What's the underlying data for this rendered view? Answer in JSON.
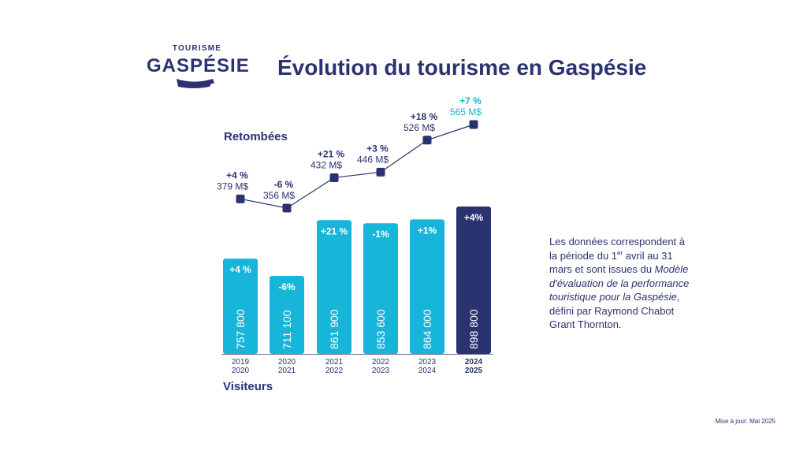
{
  "logo": {
    "small": "TOURISME",
    "big": "GASPÉSIE"
  },
  "title": "Évolution du tourisme en Gaspésie",
  "labels": {
    "retombees": "Retombées",
    "visiteurs": "Visiteurs"
  },
  "note": {
    "part1": "Les données correspondent à la période du 1",
    "sup": "er",
    "part2": " avril au 31 mars et sont issues du ",
    "italic": "Modèle d'évaluation de la performance touristique pour la Gaspésie",
    "part3": ", défini par Raymond Chabot Grant Thornton."
  },
  "updated": "Mise à jour: Mai 2025",
  "colors": {
    "navy": "#2b3270",
    "cyan": "#16b5d9",
    "highlight_text": "#16b5d9"
  },
  "chart_data": [
    {
      "type": "bar",
      "title": "Visiteurs",
      "categories": [
        [
          "2019",
          "2020"
        ],
        [
          "2020",
          "2021"
        ],
        [
          "2021",
          "2022"
        ],
        [
          "2022",
          "2023"
        ],
        [
          "2023",
          "2024"
        ],
        [
          "2024",
          "2025"
        ]
      ],
      "values": [
        757800,
        711100,
        861900,
        853600,
        864000,
        898800
      ],
      "value_labels": [
        "757 800",
        "711 100",
        "861 900",
        "853 600",
        "864 000",
        "898 800"
      ],
      "change_labels": [
        "+4 %",
        "-6%",
        "+21 %",
        "-1%",
        "+1%",
        "+4%"
      ],
      "highlight_index": 5
    },
    {
      "type": "line",
      "title": "Retombées",
      "categories": [
        "2019-2020",
        "2020-2021",
        "2021-2022",
        "2022-2023",
        "2023-2024",
        "2024-2025"
      ],
      "values": [
        379,
        356,
        432,
        446,
        526,
        565
      ],
      "unit": "M$",
      "value_labels": [
        "379 M$",
        "356 M$",
        "432 M$",
        "446 M$",
        "526 M$",
        "565 M$"
      ],
      "change_labels": [
        "+4 %",
        "-6 %",
        "+21 %",
        "+3 %",
        "+18 %",
        "+7 %"
      ],
      "highlight_index": 5
    }
  ]
}
